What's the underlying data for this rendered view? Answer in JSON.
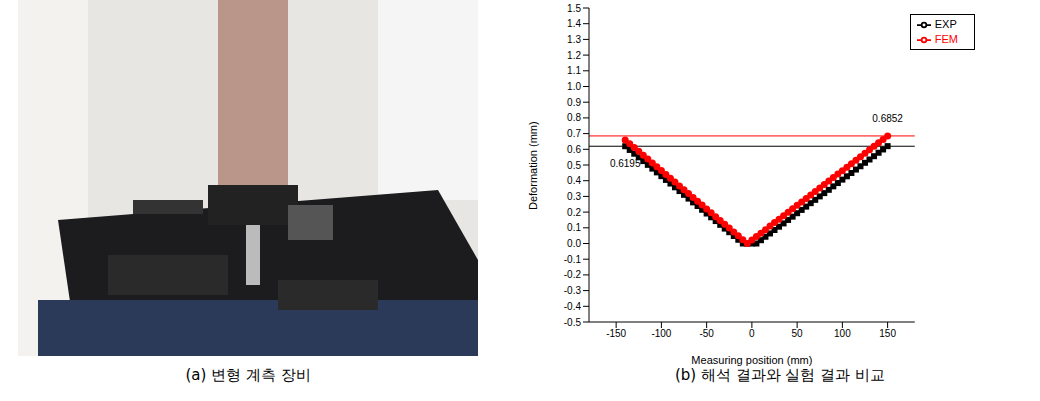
{
  "figure": {
    "photo_caption": "(a) 변형 계측 장비",
    "chart_caption": "(b) 해석 결과와 실험 결과 비교"
  },
  "chart_data": {
    "type": "line",
    "x_label": "Measuring position (mm)",
    "y_label": "Deformation (mm)",
    "x": [
      -140,
      -135,
      -130,
      -125,
      -120,
      -115,
      -110,
      -105,
      -100,
      -95,
      -90,
      -85,
      -80,
      -75,
      -70,
      -65,
      -60,
      -55,
      -50,
      -45,
      -40,
      -35,
      -30,
      -25,
      -20,
      -15,
      -10,
      -5,
      0,
      5,
      10,
      15,
      20,
      25,
      30,
      35,
      40,
      45,
      50,
      55,
      60,
      65,
      70,
      75,
      80,
      85,
      90,
      95,
      100,
      105,
      110,
      115,
      120,
      125,
      130,
      135,
      140,
      145,
      150
    ],
    "series": [
      {
        "name": "EXP",
        "color": "#000000",
        "marker": "square",
        "values": [
          0.6195,
          0.596,
          0.572,
          0.549,
          0.525,
          0.501,
          0.477,
          0.453,
          0.429,
          0.405,
          0.382,
          0.358,
          0.334,
          0.31,
          0.286,
          0.262,
          0.239,
          0.215,
          0.191,
          0.167,
          0.143,
          0.119,
          0.095,
          0.072,
          0.048,
          0.024,
          0,
          0,
          0,
          0,
          0.021,
          0.043,
          0.064,
          0.086,
          0.107,
          0.128,
          0.15,
          0.171,
          0.193,
          0.214,
          0.235,
          0.257,
          0.278,
          0.3,
          0.321,
          0.342,
          0.364,
          0.385,
          0.407,
          0.428,
          0.449,
          0.471,
          0.492,
          0.514,
          0.535,
          0.556,
          0.578,
          0.599,
          0.62
        ]
      },
      {
        "name": "FEM",
        "color": "#ff0000",
        "marker": "circle",
        "values": [
          0.66,
          0.636,
          0.611,
          0.587,
          0.562,
          0.538,
          0.513,
          0.489,
          0.465,
          0.44,
          0.416,
          0.391,
          0.367,
          0.342,
          0.318,
          0.293,
          0.269,
          0.245,
          0.22,
          0.196,
          0.171,
          0.147,
          0.122,
          0.098,
          0.073,
          0.049,
          0.024,
          0,
          0.022,
          0.044,
          0.066,
          0.088,
          0.111,
          0.133,
          0.155,
          0.177,
          0.199,
          0.221,
          0.243,
          0.265,
          0.287,
          0.309,
          0.332,
          0.354,
          0.376,
          0.398,
          0.42,
          0.442,
          0.464,
          0.486,
          0.508,
          0.53,
          0.553,
          0.575,
          0.597,
          0.619,
          0.641,
          0.663,
          0.6852
        ]
      }
    ],
    "xlim": [
      -180,
      180
    ],
    "xticks": [
      -150,
      -100,
      -50,
      0,
      50,
      100,
      150
    ],
    "ylim": [
      -0.5,
      1.5
    ],
    "yticks": [
      -0.5,
      -0.4,
      -0.3,
      -0.2,
      -0.1,
      {
        "value": 0,
        "label": "0.0"
      },
      0.1,
      0.2,
      0.3,
      0.4,
      0.5,
      0.6,
      0.7,
      0.8,
      0.9,
      {
        "value": 1,
        "label": "1.0"
      },
      1.1,
      1.2,
      1.3,
      1.4,
      1.5
    ],
    "reference_lines": [
      {
        "value": 0.6195,
        "color": "#000000"
      },
      {
        "value": 0.6852,
        "color": "#ff0000"
      }
    ],
    "annotations": [
      {
        "text": "0.6195",
        "x": -140,
        "y": 0.6195
      },
      {
        "text": "0.6852",
        "x": 150,
        "y": 0.6852
      }
    ],
    "legend": "upper right",
    "grid": false
  }
}
